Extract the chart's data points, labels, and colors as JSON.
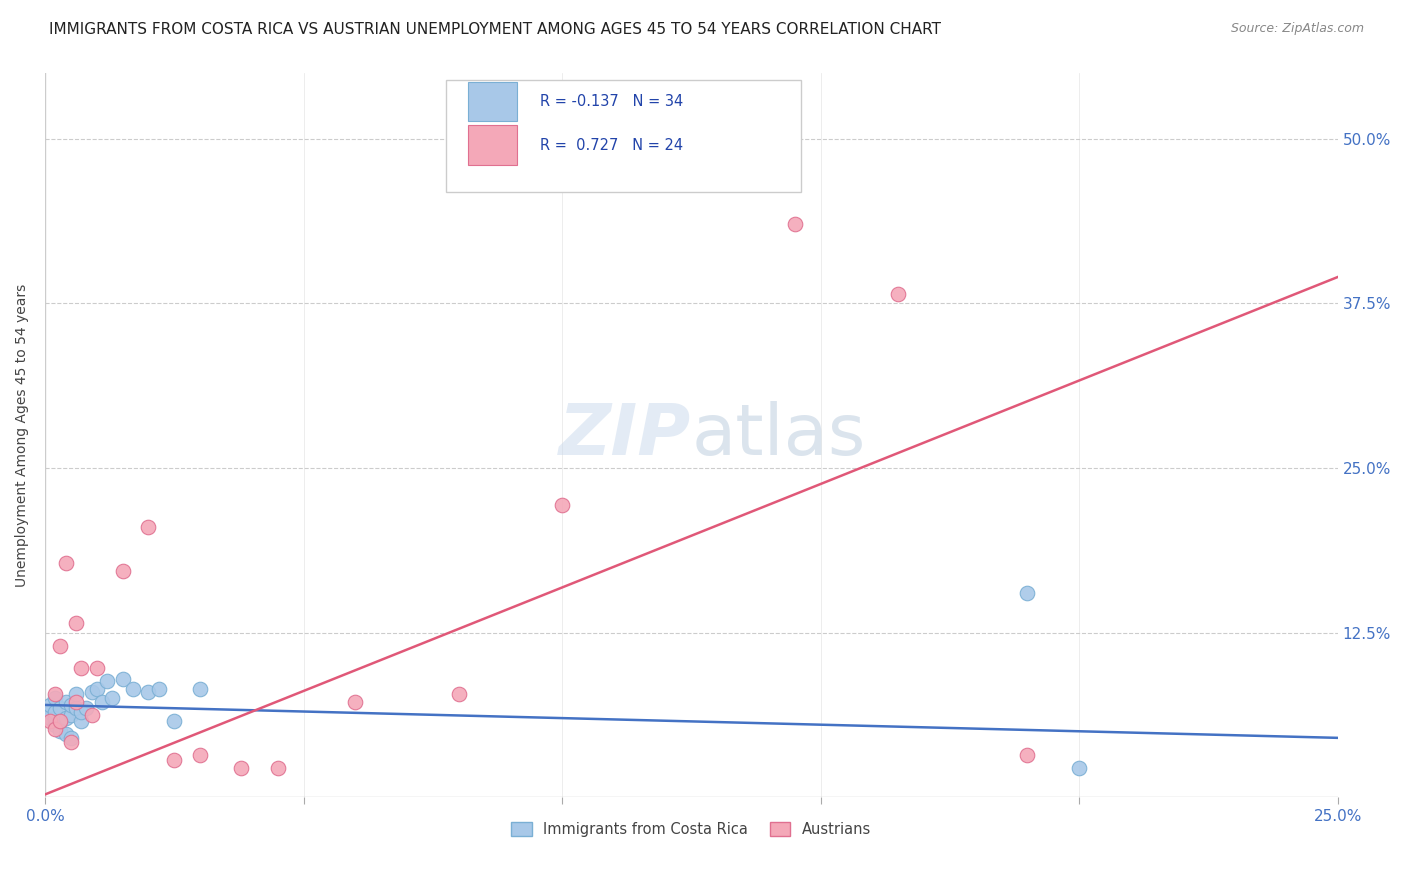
{
  "title": "IMMIGRANTS FROM COSTA RICA VS AUSTRIAN UNEMPLOYMENT AMONG AGES 45 TO 54 YEARS CORRELATION CHART",
  "source": "Source: ZipAtlas.com",
  "ylabel_label": "Unemployment Among Ages 45 to 54 years",
  "legend_entries": [
    {
      "label": "Immigrants from Costa Rica",
      "R": "-0.137",
      "N": "34",
      "color": "#a8c8e8",
      "edge": "#7aafd4"
    },
    {
      "label": "Austrians",
      "R": "0.727",
      "N": "24",
      "color": "#f4a8b8",
      "edge": "#e07090"
    }
  ],
  "blue_scatter_x": [
    0.001,
    0.001,
    0.001,
    0.002,
    0.002,
    0.002,
    0.002,
    0.003,
    0.003,
    0.003,
    0.004,
    0.004,
    0.004,
    0.005,
    0.005,
    0.005,
    0.006,
    0.006,
    0.007,
    0.007,
    0.008,
    0.009,
    0.01,
    0.011,
    0.012,
    0.013,
    0.015,
    0.017,
    0.02,
    0.022,
    0.025,
    0.03,
    0.19,
    0.2
  ],
  "blue_scatter_y": [
    0.06,
    0.065,
    0.07,
    0.055,
    0.06,
    0.065,
    0.075,
    0.05,
    0.058,
    0.068,
    0.048,
    0.06,
    0.072,
    0.045,
    0.062,
    0.07,
    0.068,
    0.078,
    0.058,
    0.065,
    0.068,
    0.08,
    0.082,
    0.072,
    0.088,
    0.075,
    0.09,
    0.082,
    0.08,
    0.082,
    0.058,
    0.082,
    0.155,
    0.022
  ],
  "pink_scatter_x": [
    0.001,
    0.002,
    0.002,
    0.003,
    0.003,
    0.004,
    0.005,
    0.006,
    0.006,
    0.007,
    0.009,
    0.01,
    0.015,
    0.02,
    0.025,
    0.03,
    0.038,
    0.045,
    0.06,
    0.08,
    0.1,
    0.145,
    0.165,
    0.19
  ],
  "pink_scatter_y": [
    0.058,
    0.052,
    0.078,
    0.058,
    0.115,
    0.178,
    0.042,
    0.132,
    0.072,
    0.098,
    0.062,
    0.098,
    0.172,
    0.205,
    0.028,
    0.032,
    0.022,
    0.022,
    0.072,
    0.078,
    0.222,
    0.435,
    0.382,
    0.032
  ],
  "blue_line_x": [
    0.0,
    0.25
  ],
  "blue_line_y": [
    0.07,
    0.045
  ],
  "pink_line_x": [
    0.0,
    0.25
  ],
  "pink_line_y": [
    0.002,
    0.395
  ],
  "xlim": [
    0.0,
    0.25
  ],
  "ylim": [
    0.0,
    0.55
  ],
  "ytick_vals": [
    0.0,
    0.125,
    0.25,
    0.375,
    0.5
  ],
  "ytick_labels": [
    "",
    "12.5%",
    "25.0%",
    "37.5%",
    "50.0%"
  ],
  "xtick_vals": [
    0.0,
    0.05,
    0.1,
    0.15,
    0.2,
    0.25
  ],
  "xtick_labels_shown": [
    "0.0%",
    "",
    "",
    "",
    "",
    "25.0%"
  ],
  "title_fontsize": 11,
  "source_fontsize": 9,
  "axis_label_fontsize": 10,
  "tick_fontsize": 11,
  "marker_size": 110,
  "line_width": 1.8,
  "watermark_zip": "ZIP",
  "watermark_atlas": "atlas",
  "background_color": "#ffffff",
  "grid_color": "#cccccc",
  "tick_color": "#4472c4"
}
